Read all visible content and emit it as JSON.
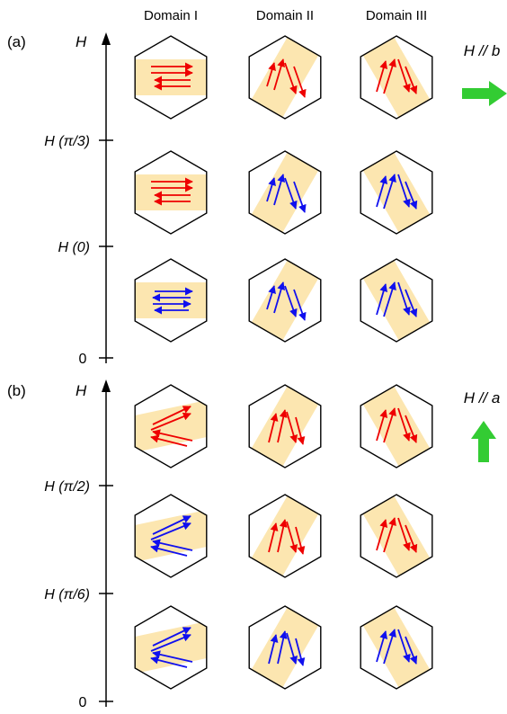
{
  "colors": {
    "hexagon_stroke": "#000000",
    "band_fill": "#fce6b0",
    "spin_red": "#ee0000",
    "spin_blue": "#1010ee",
    "field_arrow": "#33cc33",
    "field_label": "#33cc33"
  },
  "column_headers": [
    "Domain I",
    "Domain II",
    "Domain III"
  ],
  "panels": [
    {
      "label": "(a)",
      "axis_label": "H",
      "axis_zero": "0",
      "ticks": [
        "H (π/3)",
        "H (0)"
      ],
      "field_label": "H // b",
      "field_arrow_direction": "right",
      "rows": [
        [
          "red",
          "red",
          "red"
        ],
        [
          "red",
          "blue",
          "blue"
        ],
        [
          "blue",
          "blue",
          "blue"
        ]
      ]
    },
    {
      "label": "(b)",
      "axis_label": "H",
      "axis_zero": "0",
      "ticks": [
        "H (π/2)",
        "H (π/6)"
      ],
      "field_label": "H // a",
      "field_arrow_direction": "up",
      "rows": [
        [
          "red",
          "red",
          "red"
        ],
        [
          "blue",
          "red",
          "red"
        ],
        [
          "blue",
          "blue",
          "blue"
        ]
      ]
    }
  ]
}
